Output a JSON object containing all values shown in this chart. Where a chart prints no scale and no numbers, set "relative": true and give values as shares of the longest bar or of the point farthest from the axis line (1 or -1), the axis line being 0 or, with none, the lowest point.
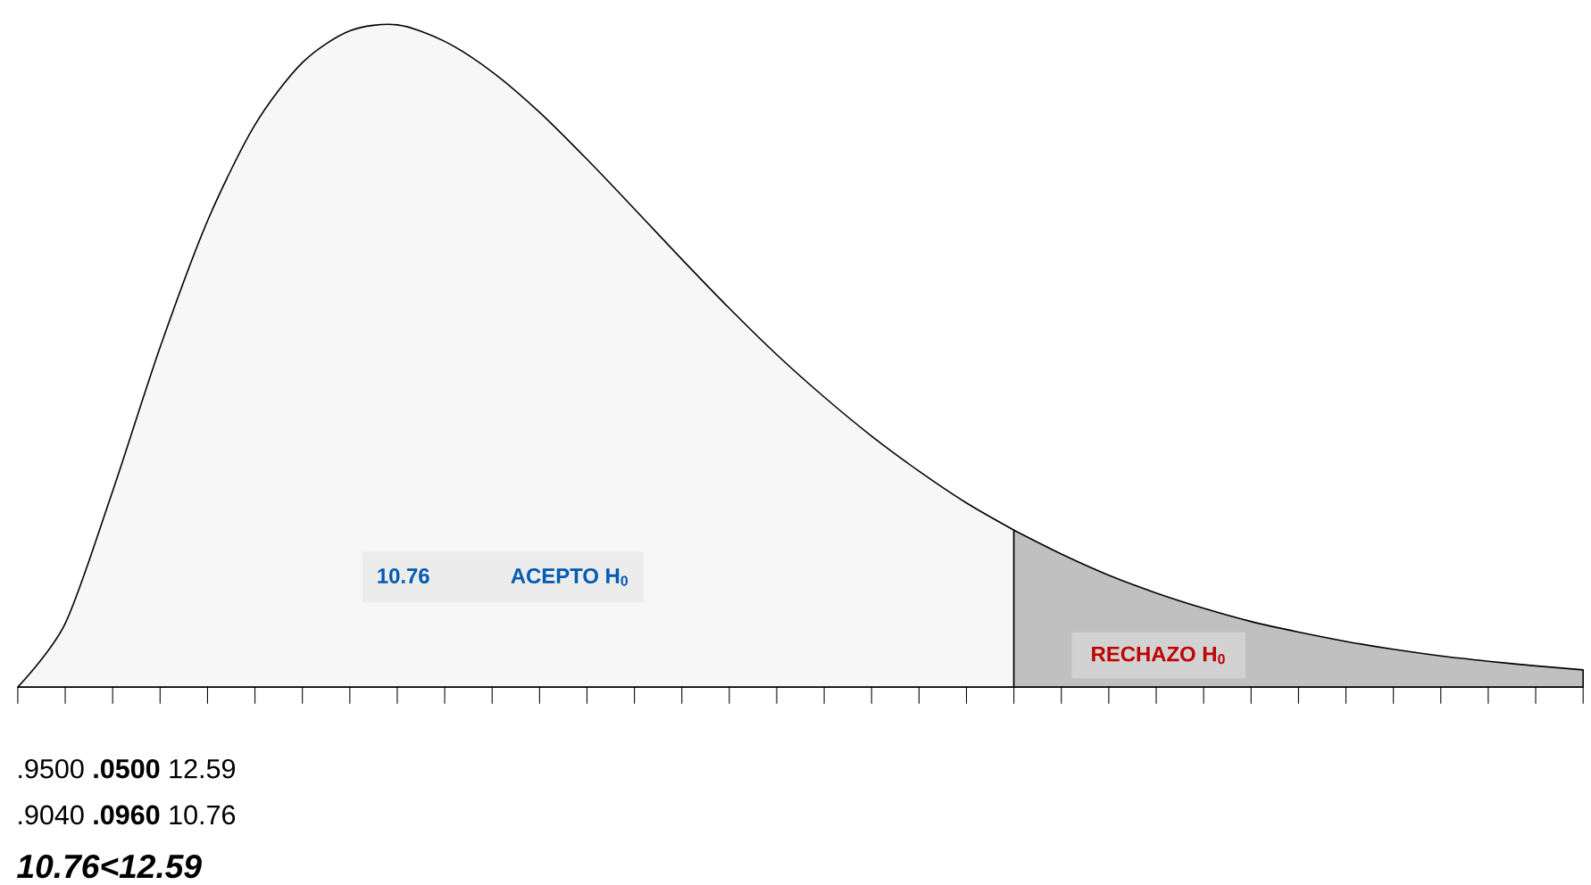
{
  "chart_data": {
    "type": "area",
    "relative": true,
    "categories": [
      null,
      null,
      null,
      null,
      null,
      null,
      null,
      null,
      null,
      null,
      null,
      null,
      null,
      null,
      null,
      null,
      null,
      null,
      null,
      null,
      null,
      null,
      null,
      null,
      null,
      null,
      null,
      null,
      null,
      null,
      null,
      null,
      null,
      null
    ],
    "series": [
      {
        "color": "#f7f7f7",
        "values": [
          0,
          0.096,
          0.296,
          0.513,
          0.704,
          0.849,
          0.943,
          0.991,
          1,
          0.975,
          0.929,
          0.868,
          0.797,
          0.722,
          0.646,
          0.572,
          0.502,
          0.438,
          0.379,
          0.326,
          0.278,
          0.237,
          null,
          null,
          null,
          null,
          null,
          null,
          null,
          null,
          null,
          null,
          null,
          null
        ]
      },
      {
        "color": "#c0c0c0",
        "values": [
          null,
          null,
          null,
          null,
          null,
          null,
          null,
          null,
          null,
          null,
          null,
          null,
          null,
          null,
          null,
          null,
          null,
          null,
          null,
          null,
          null,
          0.237,
          0.201,
          0.169,
          0.142,
          0.119,
          0.099,
          0.083,
          0.069,
          0.057,
          0.047,
          0.039,
          0.032,
          0.026
        ]
      }
    ],
    "annotations": [
      "10.76",
      "ACEPTO H$_{0}$",
      "RECHAZO H$_{0}$",
      ".9500 **.0500** 12.59",
      ".9040 **.0960** 10.76",
      "10.76<12.59"
    ]
  }
}
